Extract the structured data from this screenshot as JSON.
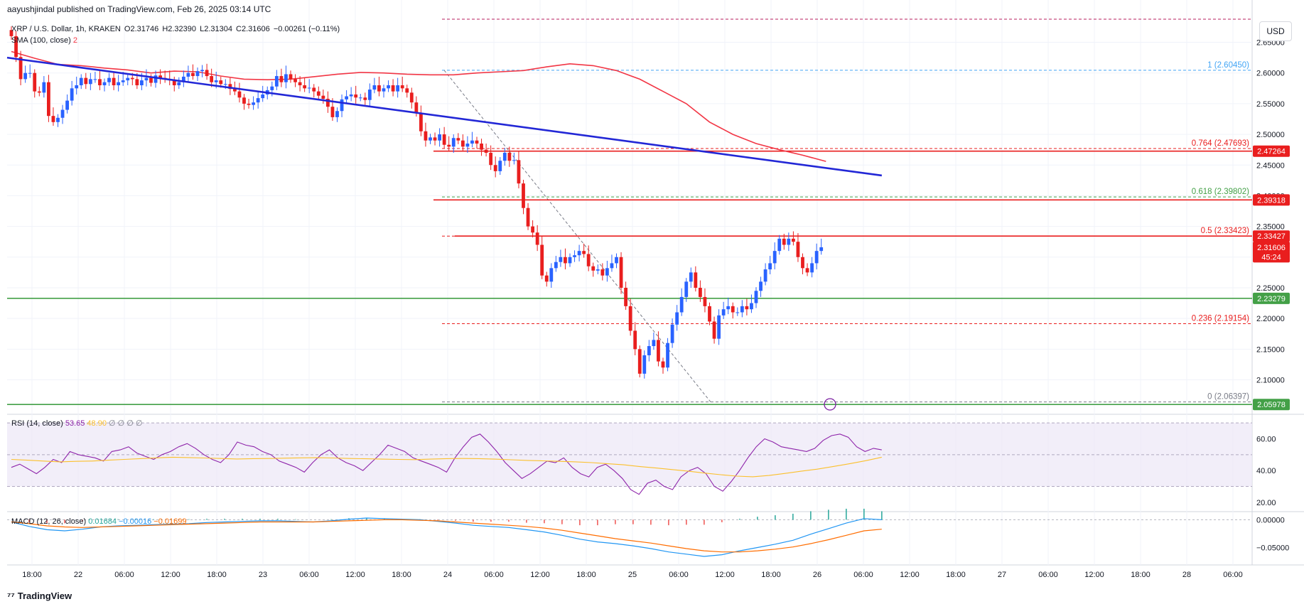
{
  "header": {
    "publisher_line": "aayushjindal published on TradingView.com, Feb 26, 2025 03:14 UTC",
    "symbol": "XRP / U.S. Dollar, 1h, KRAKEN",
    "ohlc": {
      "o": "O2.31746",
      "h": "H2.32390",
      "l": "L2.31304",
      "c": "C2.31606",
      "chg": "−0.00261 (−0.11%)"
    },
    "sma_label": "SMA (100, close)",
    "sma_value": "2"
  },
  "rsi_legend": {
    "label": "RSI (14, close)",
    "value": "53.65",
    "ma": "48.90",
    "extra": "∅ ∅ ∅ ∅"
  },
  "macd_legend": {
    "label": "MACD (12, 26, close)",
    "hist": "0.01684",
    "macd": "−0.00016",
    "signal": "−0.01699"
  },
  "currency_button": "USD",
  "footer_brand": "TradingView",
  "colors": {
    "up": "#2962ff",
    "down": "#e91e1e",
    "sma": "#f23645",
    "trend": "#2227d6",
    "support": "#43a047",
    "rsi": "#8e24aa",
    "rsi_ma": "#fbc02d",
    "macd": "#2196f3",
    "signal": "#ff6d00"
  },
  "chart_data": [
    {
      "type": "candlestick",
      "price_axis": {
        "ticks": [
          "2.65000",
          "2.60000",
          "2.55000",
          "2.50000",
          "2.45000",
          "2.40000",
          "2.35000",
          "2.30000",
          "2.25000",
          "2.20000",
          "2.15000",
          "2.10000"
        ],
        "tick_values": [
          2.65,
          2.6,
          2.55,
          2.5,
          2.45,
          2.4,
          2.35,
          2.3,
          2.25,
          2.2,
          2.15,
          2.1
        ],
        "ylim": [
          2.045,
          2.69
        ]
      },
      "time_axis": [
        "18:00",
        "22",
        "06:00",
        "12:00",
        "18:00",
        "23",
        "06:00",
        "12:00",
        "18:00",
        "24",
        "06:00",
        "12:00",
        "18:00",
        "25",
        "06:00",
        "12:00",
        "18:00",
        "26",
        "06:00",
        "12:00",
        "18:00",
        "27",
        "06:00",
        "12:00",
        "18:00",
        "28",
        "06:00"
      ],
      "price_tags": [
        {
          "label": "2.47264",
          "value": 2.47264,
          "color": "#e91e1e"
        },
        {
          "label": "2.39318",
          "value": 2.39318,
          "color": "#e91e1e"
        },
        {
          "label": "2.33427",
          "value": 2.33427,
          "color": "#e91e1e"
        },
        {
          "label": "2.31606",
          "value": 2.31606,
          "color": "#e91e1e"
        },
        {
          "label": "45:24",
          "value": 2.3005,
          "color": "#e91e1e"
        },
        {
          "label": "2.23279",
          "value": 2.23279,
          "color": "#43a047"
        },
        {
          "label": "2.05978",
          "value": 2.05978,
          "color": "#43a047"
        }
      ],
      "fib_levels": [
        {
          "ratio": "1",
          "price": "(2.60450)",
          "value": 2.6045,
          "color": "#42a5f5"
        },
        {
          "ratio": "0.764",
          "price": "(2.47693)",
          "value": 2.47693,
          "color": "#e91e1e"
        },
        {
          "ratio": "0.618",
          "price": "(2.39802)",
          "value": 2.39802,
          "color": "#43a047"
        },
        {
          "ratio": "0.5",
          "price": "(2.33423)",
          "value": 2.33423,
          "color": "#e91e1e"
        },
        {
          "ratio": "0.236",
          "price": "(2.19154)",
          "value": 2.19154,
          "color": "#e91e1e"
        },
        {
          "ratio": "0",
          "price": "(2.06397)",
          "value": 2.06397,
          "color": "#787b86"
        }
      ],
      "horizontal_lines": [
        {
          "value": 2.47264,
          "color": "#e91e1e"
        },
        {
          "value": 2.39318,
          "color": "#e91e1e"
        },
        {
          "value": 2.33427,
          "color": "#e91e1e"
        },
        {
          "value": 2.23279,
          "color": "#43a047"
        },
        {
          "value": 2.05978,
          "color": "#43a047"
        }
      ],
      "trend_line": {
        "from_bar": 0,
        "from_value": 2.625,
        "to_bar": 187,
        "to_value": 2.433
      },
      "closes": [
        2.66,
        2.626,
        2.59,
        2.6,
        2.6,
        2.57,
        2.568,
        2.585,
        2.53,
        2.52,
        2.527,
        2.54,
        2.555,
        2.575,
        2.58,
        2.592,
        2.582,
        2.59,
        2.59,
        2.58,
        2.585,
        2.592,
        2.58,
        2.585,
        2.588,
        2.592,
        2.59,
        2.58,
        2.588,
        2.592,
        2.584,
        2.596,
        2.592,
        2.59,
        2.588,
        2.58,
        2.585,
        2.594,
        2.6,
        2.595,
        2.603,
        2.605,
        2.595,
        2.585,
        2.588,
        2.582,
        2.582,
        2.574,
        2.57,
        2.56,
        2.55,
        2.548,
        2.552,
        2.559,
        2.565,
        2.572,
        2.578,
        2.595,
        2.585,
        2.598,
        2.59,
        2.585,
        2.58,
        2.575,
        2.576,
        2.57,
        2.563,
        2.558,
        2.545,
        2.528,
        2.538,
        2.557,
        2.562,
        2.565,
        2.56,
        2.56,
        2.556,
        2.573,
        2.58,
        2.57,
        2.575,
        2.58,
        2.57,
        2.58,
        2.575,
        2.568,
        2.552,
        2.535,
        2.505,
        2.49,
        2.495,
        2.49,
        2.5,
        2.483,
        2.48,
        2.494,
        2.49,
        2.48,
        2.485,
        2.49,
        2.485,
        2.475,
        2.47,
        2.45,
        2.44,
        2.457,
        2.47,
        2.457,
        2.458,
        2.42,
        2.38,
        2.35,
        2.34,
        2.32,
        2.27,
        2.26,
        2.282,
        2.292,
        2.3,
        2.29,
        2.3,
        2.303,
        2.31,
        2.305,
        2.285,
        2.278,
        2.28,
        2.27,
        2.282,
        2.29,
        2.3,
        2.25,
        2.22,
        2.18,
        2.15,
        2.11,
        2.14,
        2.155,
        2.165,
        2.13,
        2.12,
        2.16,
        2.19,
        2.21,
        2.235,
        2.26,
        2.275,
        2.25,
        2.235,
        2.22,
        2.195,
        2.167,
        2.205,
        2.215,
        2.22,
        2.21,
        2.21,
        2.22,
        2.215,
        2.225,
        2.245,
        2.26,
        2.28,
        2.29,
        2.31,
        2.33,
        2.32,
        2.33,
        2.325,
        2.3,
        2.282,
        2.275,
        2.29,
        2.31,
        2.316
      ],
      "last_close": 2.31606,
      "sma100": [
        2.635,
        2.624,
        2.614,
        2.612,
        2.608,
        2.605,
        2.6,
        2.603,
        2.602,
        2.595,
        2.59,
        2.589,
        2.59,
        2.594,
        2.598,
        2.601,
        2.6,
        2.598,
        2.597,
        2.597,
        2.6,
        2.602,
        2.604,
        2.61,
        2.615,
        2.612,
        2.604,
        2.59,
        2.57,
        2.55,
        2.52,
        2.5,
        2.485,
        2.475,
        2.466,
        2.456
      ],
      "sma_from_bar": 0,
      "sma_to_bar": 175
    },
    {
      "type": "line",
      "name": "RSI (14, close)",
      "ticks": [
        "60.00",
        "40.00",
        "20.00"
      ],
      "tick_values": [
        60,
        40,
        20
      ],
      "ylim": [
        15,
        75
      ],
      "bands": [
        70,
        50,
        30
      ],
      "rsi": [
        42,
        44,
        41,
        38,
        42,
        47,
        45,
        52,
        50,
        49,
        48,
        46,
        52,
        53,
        55,
        51,
        49,
        47,
        50,
        52,
        55,
        57,
        54,
        50,
        47,
        45,
        50,
        58,
        56,
        55,
        52,
        50,
        46,
        44,
        42,
        39,
        45,
        50,
        53,
        48,
        45,
        43,
        40,
        45,
        50,
        56,
        54,
        52,
        48,
        46,
        44,
        42,
        39,
        48,
        55,
        61,
        63,
        58,
        52,
        45,
        40,
        35,
        38,
        42,
        46,
        45,
        48,
        42,
        38,
        36,
        42,
        44,
        40,
        35,
        28,
        25,
        32,
        34,
        30,
        28,
        36,
        40,
        42,
        38,
        30,
        27,
        33,
        40,
        48,
        55,
        60,
        58,
        55,
        54,
        53,
        52,
        54,
        59,
        62,
        63,
        61,
        55,
        52,
        54,
        53
      ],
      "rsi_ma": [
        47,
        46.5,
        46,
        45.5,
        45.8,
        46,
        46.5,
        47,
        47.5,
        48,
        48.4,
        48.2,
        47.9,
        47.6,
        47.3,
        47.5,
        47.6,
        47.8,
        48,
        48.1,
        47.9,
        47.6,
        47.4,
        47.2,
        47,
        46.9,
        47.2,
        47.5,
        47.6,
        47.5,
        47.2,
        46.8,
        46.4,
        46.1,
        45.8,
        45.5,
        45,
        44.3,
        43.6,
        42.5,
        41.6,
        40.6,
        39.6,
        38.4,
        37.4,
        36.5,
        36.1,
        36.9,
        38.2,
        39.6,
        40.9,
        42.6,
        44.3,
        46.2,
        48.4
      ],
      "ma_from_bar": 0,
      "ma_to_bar": 187
    },
    {
      "type": "line",
      "name": "MACD (12, 26, close)",
      "ticks": [
        "0.00000",
        "−0.05000"
      ],
      "tick_values": [
        0,
        -0.05
      ],
      "ylim": [
        -0.075,
        0.012
      ],
      "macd": [
        -0.004,
        -0.012,
        -0.018,
        -0.02,
        -0.017,
        -0.013,
        -0.011,
        -0.01,
        -0.009,
        -0.008,
        -0.007,
        -0.005,
        -0.004,
        -0.003,
        -0.002,
        -0.002,
        -0.003,
        -0.004,
        -0.002,
        0.001,
        0.003,
        0.002,
        0.001,
        0,
        -0.003,
        -0.006,
        -0.01,
        -0.012,
        -0.014,
        -0.018,
        -0.022,
        -0.028,
        -0.035,
        -0.04,
        -0.043,
        -0.047,
        -0.052,
        -0.058,
        -0.062,
        -0.066,
        -0.063,
        -0.056,
        -0.05,
        -0.044,
        -0.037,
        -0.026,
        -0.016,
        -0.006,
        0.002,
        0.0
      ],
      "signal": [
        -0.004,
        -0.007,
        -0.011,
        -0.013,
        -0.014,
        -0.013,
        -0.012,
        -0.011,
        -0.01,
        -0.009,
        -0.008,
        -0.007,
        -0.006,
        -0.005,
        -0.004,
        -0.004,
        -0.004,
        -0.004,
        -0.003,
        -0.002,
        -0.001,
        0,
        0,
        -0.001,
        -0.002,
        -0.004,
        -0.006,
        -0.008,
        -0.01,
        -0.012,
        -0.015,
        -0.019,
        -0.024,
        -0.029,
        -0.034,
        -0.038,
        -0.042,
        -0.047,
        -0.052,
        -0.056,
        -0.058,
        -0.058,
        -0.056,
        -0.053,
        -0.049,
        -0.043,
        -0.036,
        -0.028,
        -0.02,
        -0.017
      ]
    }
  ]
}
